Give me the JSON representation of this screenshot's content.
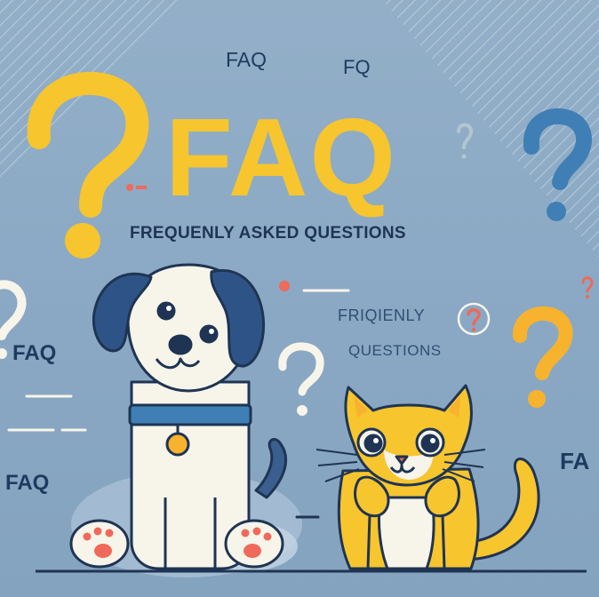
{
  "headline": "FAQ",
  "subtitle": "FREQUENLY ASKED QUESTIONS",
  "labels": {
    "faq_top": "FAQ",
    "fq_top": "FQ",
    "faq_left": "FAQ",
    "faq_left_low": "FAQ",
    "faq_right": "FA",
    "friqienly": "FRIQIENLY",
    "questions": "QUESTIONS"
  },
  "colors": {
    "background": "#89a7c3",
    "yellow": "#f7c52d",
    "navy": "#1f3453",
    "blue": "#3f7fb5",
    "cream": "#f7f4ea",
    "coral": "#ee6a5a"
  }
}
